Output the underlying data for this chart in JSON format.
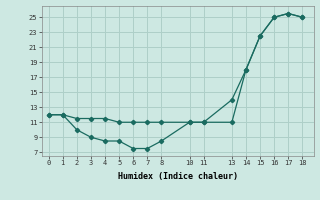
{
  "xlabel": "Humidex (Indice chaleur)",
  "bg_color": "#cde8e2",
  "grid_color": "#aecfc8",
  "line_color": "#1a6b60",
  "line1_x": [
    0,
    1,
    2,
    3,
    4,
    5,
    6,
    7,
    8,
    10,
    11,
    13,
    14,
    15,
    16,
    17,
    18
  ],
  "line1_y": [
    12.0,
    12.0,
    10.0,
    9.0,
    8.5,
    8.5,
    7.5,
    7.5,
    8.5,
    11.0,
    11.0,
    14.0,
    18.0,
    22.5,
    25.0,
    25.5,
    25.0
  ],
  "line2_x": [
    0,
    1,
    2,
    3,
    4,
    5,
    6,
    7,
    8,
    10,
    11,
    13,
    14,
    15,
    16,
    17,
    18
  ],
  "line2_y": [
    12.0,
    12.0,
    11.5,
    11.5,
    11.5,
    11.0,
    11.0,
    11.0,
    11.0,
    11.0,
    11.0,
    11.0,
    18.0,
    22.5,
    25.0,
    25.5,
    25.0
  ],
  "xticks": [
    0,
    1,
    2,
    3,
    4,
    5,
    6,
    7,
    8,
    10,
    11,
    13,
    14,
    15,
    16,
    17,
    18
  ],
  "yticks": [
    7,
    9,
    11,
    13,
    15,
    17,
    19,
    21,
    23,
    25
  ],
  "ylim": [
    6.5,
    26.5
  ],
  "xlim": [
    -0.5,
    18.8
  ]
}
